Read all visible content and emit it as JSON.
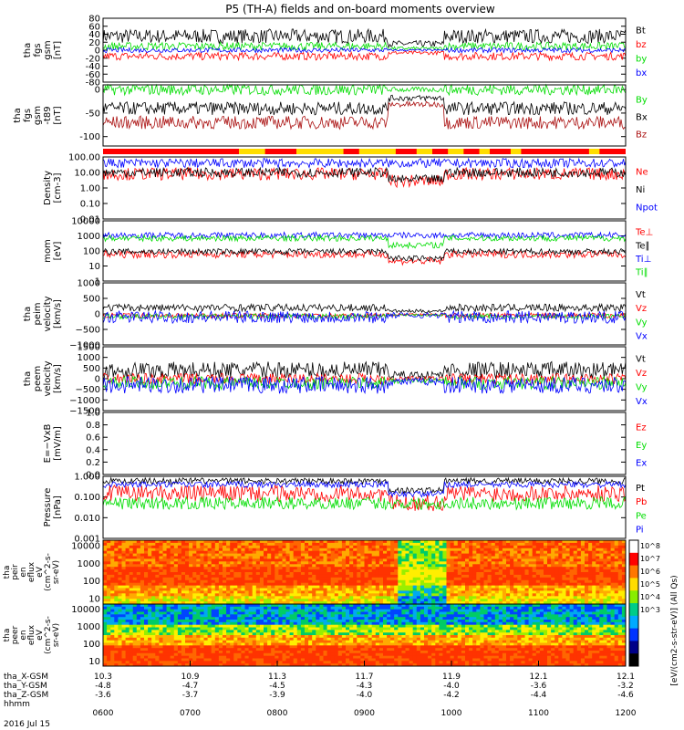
{
  "chart_data": {
    "type": "line",
    "title": "P5 (TH-A) fields and on-board moments overview",
    "date": "2016 Jul 15",
    "panels": [
      {
        "id": "fgs",
        "ylabel": [
          "tha",
          "fgs",
          "gsm",
          "[nT]"
        ],
        "ylim": [
          -80,
          80
        ],
        "ticks": [
          "80",
          "60",
          "40",
          "20",
          "0",
          "-20",
          "-40",
          "-60",
          "-80"
        ],
        "tick_values": [
          80,
          60,
          40,
          20,
          0,
          -20,
          -40,
          -60,
          -80
        ],
        "series": [
          {
            "name": "Bt",
            "color": "#000000",
            "base": 35,
            "noise": 18
          },
          {
            "name": "bz",
            "color": "#ff0000",
            "base": -15,
            "noise": 10
          },
          {
            "name": "by",
            "color": "#00dd00",
            "base": 10,
            "noise": 10
          },
          {
            "name": "bx",
            "color": "#0000ff",
            "base": 0,
            "noise": 6
          }
        ]
      },
      {
        "id": "fgs-t89",
        "ylabel": [
          "tha",
          "fgs",
          "gsm",
          "-t89",
          "[nT]"
        ],
        "ylim": [
          -120,
          10
        ],
        "ticks": [
          "0",
          "-50",
          "-100"
        ],
        "tick_values": [
          0,
          -50,
          -100
        ],
        "series": [
          {
            "name": "By",
            "color": "#00dd00",
            "base": 0,
            "noise": 12
          },
          {
            "name": "Bx",
            "color": "#000000",
            "base": -40,
            "noise": 14
          },
          {
            "name": "Bz",
            "color": "#aa1010",
            "base": -70,
            "noise": 14
          }
        ]
      },
      {
        "id": "moments-density",
        "ylabel": [
          "Density",
          "[cm-3]"
        ],
        "log": true,
        "ylim": [
          0.01,
          100
        ],
        "ticks": [
          "100.00",
          "10.00",
          "1.00",
          "0.10",
          "0.01"
        ],
        "tick_values": [
          100,
          10,
          1,
          0.1,
          0.01
        ],
        "series": [
          {
            "name": "Ne",
            "color": "#ff0000",
            "base": 8,
            "noise": 0.4
          },
          {
            "name": "Ni",
            "color": "#000000",
            "base": 10,
            "noise": 0.3
          },
          {
            "name": "Npot",
            "color": "#0000ff",
            "base": 40,
            "noise": 0.3
          }
        ]
      },
      {
        "id": "temperature",
        "ylabel": [
          "mom",
          "[eV]"
        ],
        "log": true,
        "ylim": [
          1,
          10000
        ],
        "ticks": [
          "10000",
          "1000",
          "100",
          "10",
          "1"
        ],
        "tick_values": [
          10000,
          1000,
          100,
          10,
          1
        ],
        "series": [
          {
            "name": "Te⊥",
            "color": "#ff0000",
            "base": 60,
            "noise": 0.25
          },
          {
            "name": "Te∥",
            "color": "#000000",
            "base": 90,
            "noise": 0.2
          },
          {
            "name": "Ti⊥",
            "color": "#0000ff",
            "base": 1100,
            "noise": 0.2
          },
          {
            "name": "Ti∥",
            "color": "#00dd00",
            "base": 700,
            "noise": 0.2
          }
        ]
      },
      {
        "id": "peim",
        "ylabel": [
          "tha",
          "peim",
          "velocity",
          "[km/s]"
        ],
        "ylim": [
          -1000,
          1000
        ],
        "ticks": [
          "1000",
          "500",
          "0",
          "−500",
          "−1000"
        ],
        "tick_values": [
          1000,
          500,
          0,
          -500,
          -1000
        ],
        "series": [
          {
            "name": "Vt",
            "color": "#000000",
            "base": 200,
            "noise": 120
          },
          {
            "name": "Vz",
            "color": "#ff0000",
            "base": -50,
            "noise": 80
          },
          {
            "name": "Vy",
            "color": "#00dd00",
            "base": -80,
            "noise": 80
          },
          {
            "name": "Vx",
            "color": "#0000ff",
            "base": -100,
            "noise": 200
          }
        ]
      },
      {
        "id": "peem",
        "ylabel": [
          "tha",
          "peem",
          "velocity",
          "[km/s]"
        ],
        "ylim": [
          -1500,
          1500
        ],
        "ticks": [
          "1500",
          "1000",
          "500",
          "0",
          "−500",
          "−1000",
          "−1500"
        ],
        "tick_values": [
          1500,
          1000,
          500,
          0,
          -500,
          -1000,
          -1500
        ],
        "series": [
          {
            "name": "Vt",
            "color": "#000000",
            "base": 400,
            "noise": 400
          },
          {
            "name": "Vz",
            "color": "#ff0000",
            "base": 0,
            "noise": 250
          },
          {
            "name": "Vy",
            "color": "#00dd00",
            "base": -200,
            "noise": 300
          },
          {
            "name": "Vx",
            "color": "#0000ff",
            "base": -300,
            "noise": 400
          }
        ]
      },
      {
        "id": "efield",
        "ylabel": [
          "E=−VxB",
          "[mV/m]"
        ],
        "ylim": [
          0,
          1
        ],
        "ticks": [
          "1.0",
          "0.8",
          "0.6",
          "0.4",
          "0.2",
          "0.0"
        ],
        "tick_values": [
          1,
          0.8,
          0.6,
          0.4,
          0.2,
          0
        ],
        "series": [
          {
            "name": "Ez",
            "color": "#ff0000"
          },
          {
            "name": "Ey",
            "color": "#00dd00"
          },
          {
            "name": "Ex",
            "color": "#0000ff"
          }
        ]
      },
      {
        "id": "pressure",
        "ylabel": [
          "Pressure",
          "[nPa]"
        ],
        "log": true,
        "ylim": [
          0.001,
          1
        ],
        "ticks": [
          "1.000",
          "0.100",
          "0.010",
          "0.001"
        ],
        "tick_values": [
          1,
          0.1,
          0.01,
          0.001
        ],
        "series": [
          {
            "name": "Pt",
            "color": "#000000",
            "base": 0.6,
            "noise": 0.15
          },
          {
            "name": "Pb",
            "color": "#ff0000",
            "base": 0.15,
            "noise": 0.4
          },
          {
            "name": "Pe",
            "color": "#00dd00",
            "base": 0.05,
            "noise": 0.3
          },
          {
            "name": "Pi",
            "color": "#0000ff",
            "base": 0.4,
            "noise": 0.15
          }
        ]
      }
    ],
    "spectrograms": [
      {
        "id": "peir",
        "ylabel": [
          "tha",
          "peir",
          "en",
          "eflux",
          "eV",
          "(cm^2-s-",
          "sr-eV)"
        ],
        "ticks": [
          "10000",
          "1000",
          "100",
          "10"
        ],
        "tick_values": [
          10000,
          1000,
          100,
          10
        ]
      },
      {
        "id": "peer",
        "ylabel": [
          "tha",
          "peer",
          "en",
          "eflux",
          "eV",
          "(cm^2-s-",
          "sr-eV)"
        ],
        "ticks": [
          "10000",
          "1000",
          "100",
          "10"
        ],
        "tick_values": [
          10000,
          1000,
          100,
          10
        ]
      }
    ],
    "colorbar": {
      "label": "[eV/(cm2-s-str-eV)] (All Qs)",
      "ticks": [
        "10^8",
        "10^7",
        "10^6",
        "10^5",
        "10^4",
        "10^3"
      ]
    },
    "x_axis": {
      "times": [
        "0600",
        "0700",
        "0800",
        "0900",
        "1000",
        "1100",
        "1200"
      ],
      "rows": [
        {
          "label": "tha_X-GSM",
          "values": [
            "10.3",
            "10.9",
            "11.3",
            "11.7",
            "11.9",
            "12.1",
            "12.1"
          ]
        },
        {
          "label": "tha_Y-GSM",
          "values": [
            "-4.8",
            "-4.7",
            "-4.5",
            "-4.3",
            "-4.0",
            "-3.6",
            "-3.2"
          ]
        },
        {
          "label": "tha_Z-GSM",
          "values": [
            "-3.6",
            "-3.7",
            "-3.9",
            "-4.0",
            "-4.2",
            "-4.4",
            "-4.6"
          ]
        },
        {
          "label": "hhmm",
          "values": []
        }
      ]
    }
  }
}
